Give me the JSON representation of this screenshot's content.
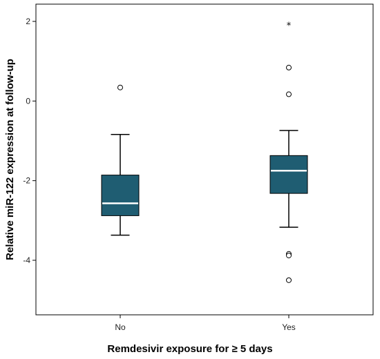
{
  "chart_data": {
    "type": "box",
    "xlabel": "Remdesivir exposure for ≥ 5 days",
    "ylabel": "Relative miR-122 expression at follow-up",
    "ylim": [
      -5.5,
      2.2
    ],
    "yticks": [
      -4,
      -2,
      0,
      2
    ],
    "categories": [
      "No",
      "Yes"
    ],
    "boxes": [
      {
        "category": "No",
        "whisker_low": -3.37,
        "q1": -2.88,
        "median": -2.57,
        "q3": -1.86,
        "whisker_high": -0.84,
        "outliers": [
          0.34
        ],
        "extremes": []
      },
      {
        "category": "Yes",
        "whisker_low": -3.17,
        "q1": -2.32,
        "median": -1.75,
        "q3": -1.37,
        "whisker_high": -0.74,
        "outliers": [
          0.84,
          0.17,
          -3.84,
          -3.88,
          -4.5
        ],
        "extremes": [
          1.92
        ]
      }
    ],
    "box_color": "#1f5d72",
    "median_color": "#ffffff",
    "grid": false,
    "legend": "none"
  }
}
